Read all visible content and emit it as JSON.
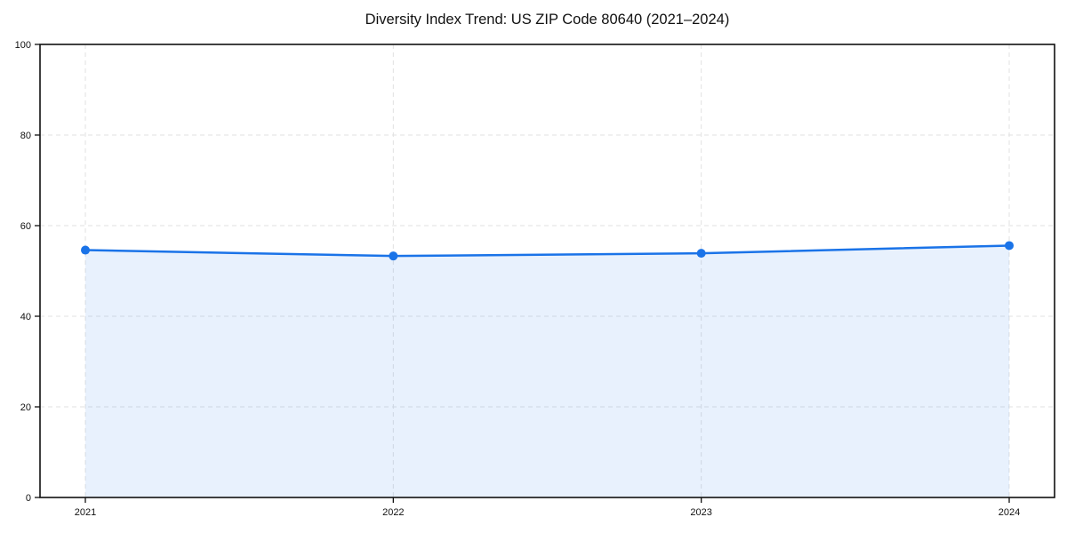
{
  "chart_data": {
    "type": "area",
    "title": "Diversity Index Trend: US ZIP Code 80640 (2021–2024)",
    "categories": [
      "2021",
      "2022",
      "2023",
      "2024"
    ],
    "series": [
      {
        "name": "Diversity Index",
        "values": [
          54.6,
          53.3,
          53.9,
          55.6
        ]
      }
    ],
    "xlabel": "",
    "ylabel": "",
    "ylim": [
      0,
      100
    ],
    "yticks": [
      0,
      20,
      40,
      60,
      80,
      100
    ],
    "grid": "dashed-both-axes",
    "legend": "none",
    "marker": "circle",
    "colors": {
      "line": "#1a73e8",
      "marker": "#1a73e8",
      "fill": "#1a73e8",
      "fill_opacity": 0.1,
      "grid": "#e2e2e2",
      "spine": "#111111",
      "tick": "#111111",
      "tick_label": "#111111",
      "title": "#111111",
      "background": "#ffffff"
    }
  }
}
